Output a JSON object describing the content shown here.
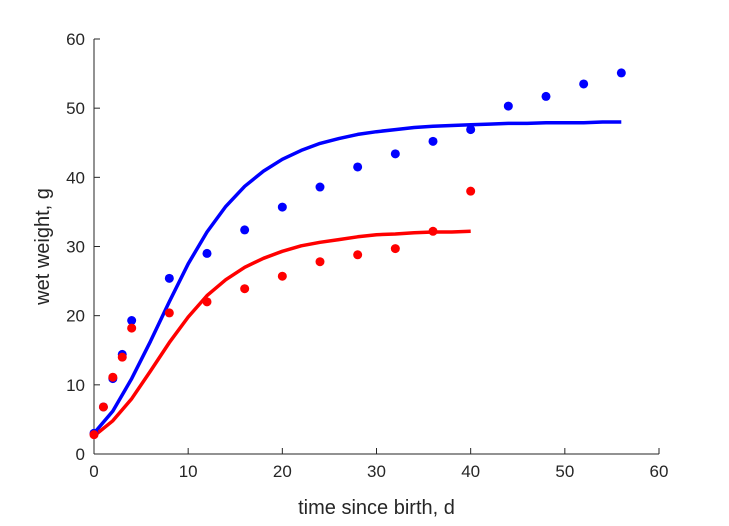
{
  "chart_data": {
    "type": "scatter",
    "title": "",
    "xlabel": "time since birth, d",
    "ylabel": "wet weight, g",
    "xlim": [
      0,
      60
    ],
    "ylim": [
      0,
      60
    ],
    "xticks": [
      0,
      10,
      20,
      30,
      40,
      50,
      60
    ],
    "yticks": [
      0,
      10,
      20,
      30,
      40,
      50,
      60
    ],
    "grid": false,
    "legend": "none",
    "series": [
      {
        "color": "#0000ff",
        "points": {
          "x": [
            0,
            1,
            2,
            3,
            4,
            8,
            12,
            16,
            20,
            24,
            28,
            32,
            36,
            40,
            44,
            48,
            52,
            56
          ],
          "y": [
            3.0,
            6.8,
            10.9,
            14.4,
            19.3,
            25.4,
            29.0,
            32.4,
            35.7,
            38.6,
            41.5,
            43.4,
            45.2,
            46.9,
            50.3,
            51.7,
            53.5,
            55.1
          ]
        },
        "fit": {
          "x": [
            0,
            2,
            4,
            6,
            8,
            10,
            12,
            14,
            16,
            18,
            20,
            22,
            24,
            26,
            28,
            30,
            32,
            34,
            36,
            38,
            40,
            42,
            44,
            46,
            48,
            50,
            52,
            54,
            56
          ],
          "y": [
            3.0,
            6.2,
            10.9,
            16.3,
            22.0,
            27.5,
            32.1,
            35.8,
            38.7,
            40.9,
            42.6,
            43.9,
            44.9,
            45.6,
            46.2,
            46.6,
            46.9,
            47.2,
            47.4,
            47.5,
            47.6,
            47.7,
            47.8,
            47.8,
            47.9,
            47.9,
            47.9,
            48.0,
            48.0
          ]
        }
      },
      {
        "color": "#ff0000",
        "points": {
          "x": [
            0,
            1,
            2,
            3,
            4,
            8,
            12,
            16,
            20,
            24,
            28,
            32,
            36,
            40
          ],
          "y": [
            2.8,
            6.8,
            11.1,
            14.0,
            18.2,
            20.4,
            22.0,
            23.9,
            25.7,
            27.8,
            28.8,
            29.7,
            32.2,
            38.0
          ]
        },
        "fit": {
          "x": [
            0,
            2,
            4,
            6,
            8,
            10,
            12,
            14,
            16,
            18,
            20,
            22,
            24,
            26,
            28,
            30,
            32,
            34,
            36,
            38,
            40
          ],
          "y": [
            2.6,
            4.8,
            8.0,
            12.0,
            16.1,
            19.8,
            22.9,
            25.2,
            27.0,
            28.3,
            29.3,
            30.1,
            30.6,
            31.0,
            31.4,
            31.7,
            31.8,
            32.0,
            32.1,
            32.1,
            32.2
          ]
        }
      }
    ]
  }
}
